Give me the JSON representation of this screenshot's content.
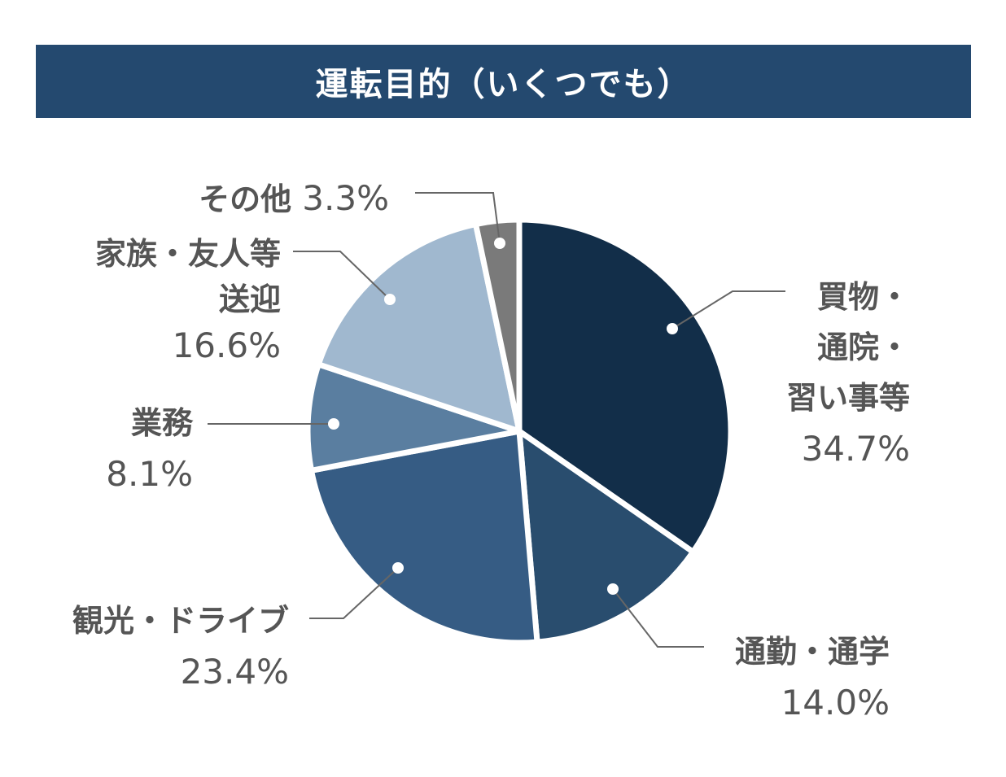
{
  "header": {
    "title": "運転目的（いくつでも）"
  },
  "chart_data": {
    "type": "pie",
    "title": "運転目的（いくつでも）",
    "start_angle_deg": 0,
    "direction": "clockwise",
    "slices": [
      {
        "label_lines": [
          "買物・",
          "通院・",
          "習い事等"
        ],
        "percent_label": "34.7%",
        "value": 34.7,
        "color": "#122e49"
      },
      {
        "label_lines": [
          "通勤・通学"
        ],
        "percent_label": "14.0%",
        "value": 14.0,
        "color": "#294d6e"
      },
      {
        "label_lines": [
          "観光・ドライブ"
        ],
        "percent_label": "23.4%",
        "value": 23.4,
        "color": "#365c84"
      },
      {
        "label_lines": [
          "業務"
        ],
        "percent_label": "8.1%",
        "value": 8.1,
        "color": "#5a7ea0"
      },
      {
        "label_lines": [
          "家族・友人等",
          "送迎"
        ],
        "percent_label": "16.6%",
        "value": 16.6,
        "color": "#a0b8cf"
      },
      {
        "label_lines": [
          "その他"
        ],
        "percent_label": "3.3%",
        "value": 3.3,
        "color": "#7a7a7a"
      }
    ],
    "label_color": "#555555",
    "leader_color": "#666666"
  }
}
